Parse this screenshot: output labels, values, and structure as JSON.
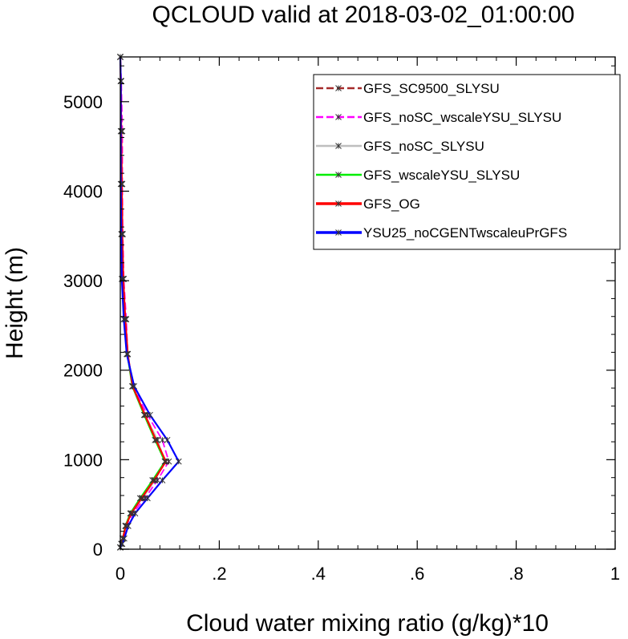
{
  "chart_data": {
    "type": "line",
    "title": "QCLOUD valid at 2018-03-02_01:00:00",
    "xlabel": "Cloud water mixing ratio (g/kg)*10",
    "ylabel": "Height (m)",
    "xlim": [
      0,
      1
    ],
    "ylim": [
      0,
      5500
    ],
    "x_ticks": [
      0,
      0.2,
      0.4,
      0.6,
      0.8,
      1
    ],
    "x_tick_labels": [
      "0",
      ".2",
      ".4",
      ".6",
      ".8",
      "1"
    ],
    "y_ticks": [
      0,
      1000,
      2000,
      3000,
      4000,
      5000
    ],
    "y_tick_labels": [
      "0",
      "1000",
      "2000",
      "3000",
      "4000",
      "5000"
    ],
    "legend_position": "top-right",
    "series": [
      {
        "name": "GFS_SC9500_SLYSU",
        "color": "#a52a2a",
        "dash": "dashed",
        "points": [
          [
            0,
            20
          ],
          [
            0.002,
            60
          ],
          [
            0.005,
            120
          ],
          [
            0.012,
            260
          ],
          [
            0.022,
            400
          ],
          [
            0.045,
            570
          ],
          [
            0.07,
            770
          ],
          [
            0.09,
            980
          ],
          [
            0.075,
            1220
          ],
          [
            0.05,
            1500
          ],
          [
            0.025,
            1820
          ],
          [
            0.015,
            2180
          ],
          [
            0.01,
            2570
          ],
          [
            0.006,
            3020
          ],
          [
            0.004,
            3520
          ],
          [
            0.003,
            4080
          ],
          [
            0.002,
            4670
          ],
          [
            0.001,
            5230
          ],
          [
            0,
            5500
          ]
        ]
      },
      {
        "name": "GFS_noSC_wscaleYSU_SLYSU",
        "color": "#ff00ff",
        "dash": "dashed",
        "points": [
          [
            0,
            20
          ],
          [
            0.002,
            60
          ],
          [
            0.005,
            120
          ],
          [
            0.012,
            260
          ],
          [
            0.025,
            400
          ],
          [
            0.05,
            570
          ],
          [
            0.075,
            770
          ],
          [
            0.098,
            980
          ],
          [
            0.085,
            1220
          ],
          [
            0.055,
            1500
          ],
          [
            0.025,
            1820
          ],
          [
            0.015,
            2180
          ],
          [
            0.012,
            2570
          ],
          [
            0.007,
            3020
          ],
          [
            0.005,
            3520
          ],
          [
            0.004,
            4080
          ],
          [
            0.004,
            4670
          ],
          [
            0.002,
            5230
          ],
          [
            0,
            5500
          ]
        ]
      },
      {
        "name": "GFS_noSC_SLYSU",
        "color": "#bebebe",
        "dash": "solid",
        "points": [
          [
            0,
            20
          ],
          [
            0.002,
            60
          ],
          [
            0.005,
            120
          ],
          [
            0.012,
            260
          ],
          [
            0.022,
            400
          ],
          [
            0.045,
            570
          ],
          [
            0.07,
            770
          ],
          [
            0.09,
            980
          ],
          [
            0.075,
            1220
          ],
          [
            0.05,
            1500
          ],
          [
            0.025,
            1820
          ],
          [
            0.015,
            2180
          ],
          [
            0.01,
            2570
          ],
          [
            0.006,
            3020
          ],
          [
            0.004,
            3520
          ],
          [
            0.003,
            4080
          ],
          [
            0.002,
            4670
          ],
          [
            0.001,
            5230
          ],
          [
            0,
            5500
          ]
        ]
      },
      {
        "name": "GFS_wscaleYSU_SLYSU",
        "color": "#00ee00",
        "dash": "solid",
        "points": [
          [
            0,
            20
          ],
          [
            0.002,
            60
          ],
          [
            0.005,
            120
          ],
          [
            0.01,
            260
          ],
          [
            0.02,
            400
          ],
          [
            0.04,
            570
          ],
          [
            0.065,
            770
          ],
          [
            0.09,
            980
          ],
          [
            0.07,
            1220
          ],
          [
            0.048,
            1500
          ],
          [
            0.024,
            1820
          ],
          [
            0.014,
            2180
          ],
          [
            0.01,
            2570
          ],
          [
            0.006,
            3020
          ],
          [
            0.004,
            3520
          ],
          [
            0.003,
            4080
          ],
          [
            0.002,
            4670
          ],
          [
            0.001,
            5230
          ],
          [
            0,
            5500
          ]
        ]
      },
      {
        "name": "GFS_OG",
        "color": "#ff0000",
        "dash": "solid",
        "points": [
          [
            0,
            20
          ],
          [
            0.002,
            60
          ],
          [
            0.005,
            120
          ],
          [
            0.011,
            260
          ],
          [
            0.022,
            400
          ],
          [
            0.043,
            570
          ],
          [
            0.068,
            770
          ],
          [
            0.092,
            980
          ],
          [
            0.072,
            1220
          ],
          [
            0.05,
            1500
          ],
          [
            0.025,
            1820
          ],
          [
            0.015,
            2180
          ],
          [
            0.01,
            2570
          ],
          [
            0.006,
            3020
          ],
          [
            0.004,
            3520
          ],
          [
            0.003,
            4080
          ],
          [
            0.002,
            4670
          ],
          [
            0.001,
            5230
          ],
          [
            0,
            5500
          ]
        ]
      },
      {
        "name": "YSU25_noCGENTwscaleuPrGFS",
        "color": "#0000ff",
        "dash": "solid",
        "points": [
          [
            0,
            20
          ],
          [
            0.004,
            60
          ],
          [
            0.008,
            120
          ],
          [
            0.016,
            260
          ],
          [
            0.03,
            400
          ],
          [
            0.055,
            570
          ],
          [
            0.085,
            770
          ],
          [
            0.118,
            980
          ],
          [
            0.095,
            1220
          ],
          [
            0.06,
            1500
          ],
          [
            0.028,
            1820
          ],
          [
            0.013,
            2180
          ],
          [
            0.007,
            2570
          ],
          [
            0.003,
            3020
          ],
          [
            0.002,
            3520
          ],
          [
            0.001,
            4080
          ],
          [
            0.001,
            4670
          ],
          [
            0.001,
            5230
          ],
          [
            0,
            5500
          ]
        ]
      }
    ]
  }
}
